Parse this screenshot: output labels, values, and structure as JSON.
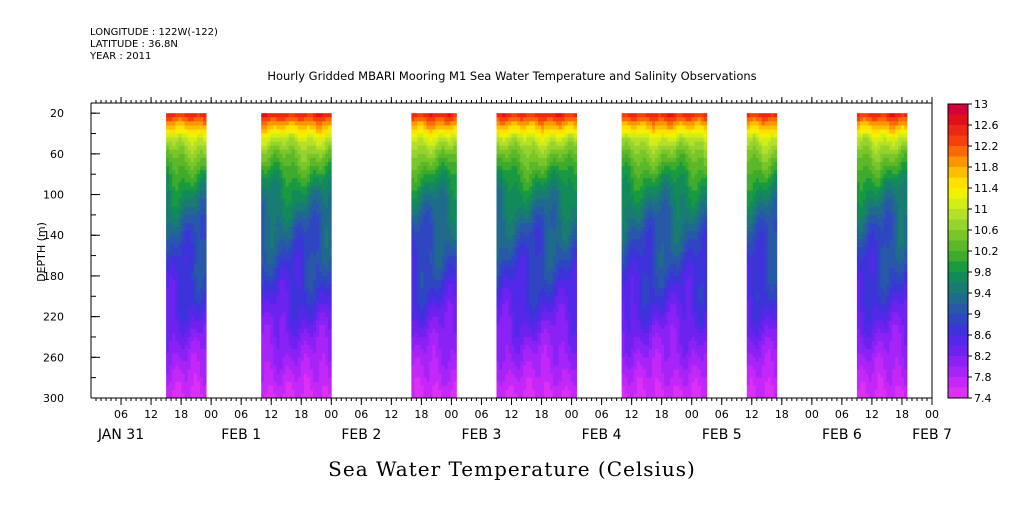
{
  "header": {
    "longitude": "LONGITUDE : 122W(-122)",
    "latitude": "LATITUDE : 36.8N",
    "year": "YEAR : 2011"
  },
  "chart_data": {
    "type": "heatmap",
    "title": "Hourly Gridded MBARI Mooring M1 Sea Water Temperature and Salinity Observations",
    "xlabel": "",
    "ylabel": "DEPTH (m)",
    "caption": "Sea Water Temperature (Celsius)",
    "y_range": [
      300,
      10
    ],
    "y_ticks": [
      20,
      60,
      100,
      140,
      180,
      220,
      260,
      300
    ],
    "x_range_hours_from_jan31_00": [
      0,
      168
    ],
    "x_hour_tick_labels": [
      "06",
      "12",
      "18",
      "00",
      "06",
      "12",
      "18",
      "00",
      "06",
      "12",
      "18",
      "00",
      "06",
      "12",
      "18",
      "00",
      "06",
      "12",
      "18",
      "00",
      "06",
      "12",
      "18",
      "00",
      "06",
      "12",
      "18",
      "00"
    ],
    "x_hour_tick_positions": [
      6,
      12,
      18,
      24,
      30,
      36,
      42,
      48,
      54,
      60,
      66,
      72,
      78,
      84,
      90,
      96,
      102,
      108,
      114,
      120,
      126,
      132,
      138,
      144,
      150,
      156,
      162,
      168
    ],
    "date_labels": [
      {
        "text": "JAN 31",
        "hour": 6
      },
      {
        "text": "FEB  1",
        "hour": 30
      },
      {
        "text": "FEB  2",
        "hour": 54
      },
      {
        "text": "FEB  3",
        "hour": 78
      },
      {
        "text": "FEB  4",
        "hour": 102
      },
      {
        "text": "FEB  5",
        "hour": 126
      },
      {
        "text": "FEB  6",
        "hour": 150
      },
      {
        "text": "FEB  7",
        "hour": 168
      }
    ],
    "data_segments_hours": [
      [
        15,
        23
      ],
      [
        34,
        48
      ],
      [
        64,
        73
      ],
      [
        81,
        97
      ],
      [
        106,
        123
      ],
      [
        131,
        137
      ],
      [
        153,
        163
      ]
    ],
    "colorbar": {
      "min": 7.4,
      "max": 13,
      "labels": [
        "13",
        "12.6",
        "12.2",
        "11.8",
        "11.4",
        "11",
        "10.6",
        "10.2",
        "9.8",
        "9.4",
        "9",
        "8.6",
        "8.2",
        "7.8",
        "7.4"
      ],
      "colors": [
        "#d4003c",
        "#e10f1c",
        "#ec2814",
        "#f4410d",
        "#f86a08",
        "#fb9500",
        "#fdbd00",
        "#ffe100",
        "#f2f200",
        "#d3ee16",
        "#b5e02a",
        "#96d32d",
        "#78c62a",
        "#5cb829",
        "#3fab2c",
        "#1a9a40",
        "#128a5a",
        "#197c72",
        "#1f6b8c",
        "#2858a8",
        "#2f46c2",
        "#3c33d8",
        "#5328e8",
        "#6d22f0",
        "#8a22f5",
        "#a624f8",
        "#c428f8",
        "#dc30f5"
      ]
    },
    "temperature_profile": [
      {
        "depth": 20,
        "value": 12.6
      },
      {
        "depth": 30,
        "value": 11.9
      },
      {
        "depth": 45,
        "value": 11.0
      },
      {
        "depth": 60,
        "value": 10.5
      },
      {
        "depth": 80,
        "value": 10.0
      },
      {
        "depth": 100,
        "value": 9.6
      },
      {
        "depth": 130,
        "value": 9.2
      },
      {
        "depth": 160,
        "value": 8.95
      },
      {
        "depth": 200,
        "value": 8.6
      },
      {
        "depth": 240,
        "value": 8.15
      },
      {
        "depth": 270,
        "value": 7.85
      },
      {
        "depth": 300,
        "value": 7.55
      }
    ]
  }
}
